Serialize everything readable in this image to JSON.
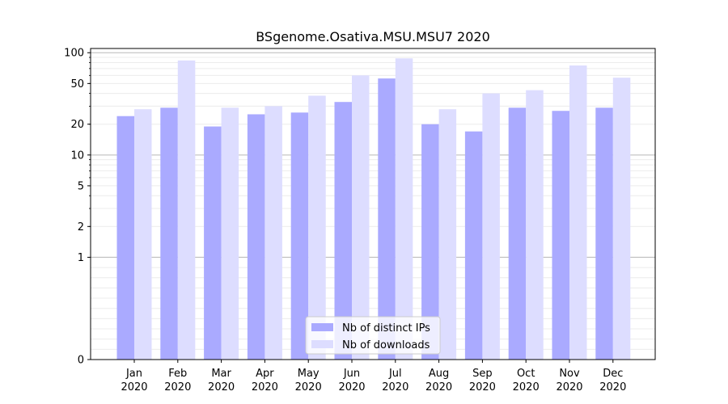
{
  "chart_data": {
    "type": "bar",
    "title": "BSgenome.Osativa.MSU.MSU7 2020",
    "xlabel": "",
    "ylabel": "",
    "y_scale": "symlog",
    "ylim": [
      0,
      110
    ],
    "y_ticks": [
      0,
      1,
      2,
      5,
      10,
      20,
      50,
      100
    ],
    "y_tick_labels": [
      "0",
      "1",
      "2",
      "5",
      "10",
      "20",
      "50",
      "100"
    ],
    "categories": [
      [
        "Jan",
        "2020"
      ],
      [
        "Feb",
        "2020"
      ],
      [
        "Mar",
        "2020"
      ],
      [
        "Apr",
        "2020"
      ],
      [
        "May",
        "2020"
      ],
      [
        "Jun",
        "2020"
      ],
      [
        "Jul",
        "2020"
      ],
      [
        "Aug",
        "2020"
      ],
      [
        "Sep",
        "2020"
      ],
      [
        "Oct",
        "2020"
      ],
      [
        "Nov",
        "2020"
      ],
      [
        "Dec",
        "2020"
      ]
    ],
    "series": [
      {
        "name": "Nb of distinct IPs",
        "color": "#aaaaff",
        "values": [
          24,
          29,
          19,
          25,
          26,
          33,
          56,
          20,
          17,
          29,
          27,
          29
        ]
      },
      {
        "name": "Nb of downloads",
        "color": "#ddddff",
        "values": [
          28,
          84,
          29,
          30,
          38,
          60,
          88,
          28,
          40,
          43,
          75,
          57
        ]
      }
    ],
    "grid": true,
    "legend_position": "bottom-center"
  }
}
